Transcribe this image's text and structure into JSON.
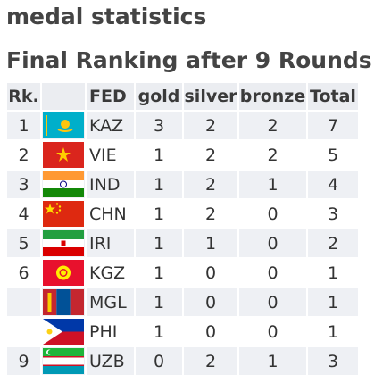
{
  "section_title": "medal statistics",
  "table_title": "Final Ranking after 9 Rounds",
  "columns": {
    "rank": "Rk.",
    "flag": "",
    "fed": "FED",
    "gold": "gold",
    "silver": "silver",
    "bronze": "bronze",
    "total": "Total"
  },
  "rows": [
    {
      "rank": "1",
      "flag_icon": "kazakhstan-flag-icon",
      "fed": "KAZ",
      "gold": "3",
      "silver": "2",
      "bronze": "2",
      "total": "7"
    },
    {
      "rank": "2",
      "flag_icon": "vietnam-flag-icon",
      "fed": "VIE",
      "gold": "1",
      "silver": "2",
      "bronze": "2",
      "total": "5"
    },
    {
      "rank": "3",
      "flag_icon": "india-flag-icon",
      "fed": "IND",
      "gold": "1",
      "silver": "2",
      "bronze": "1",
      "total": "4"
    },
    {
      "rank": "4",
      "flag_icon": "china-flag-icon",
      "fed": "CHN",
      "gold": "1",
      "silver": "2",
      "bronze": "0",
      "total": "3"
    },
    {
      "rank": "5",
      "flag_icon": "iran-flag-icon",
      "fed": "IRI",
      "gold": "1",
      "silver": "1",
      "bronze": "0",
      "total": "2"
    },
    {
      "rank": "6",
      "flag_icon": "kyrgyzstan-flag-icon",
      "fed": "KGZ",
      "gold": "1",
      "silver": "0",
      "bronze": "0",
      "total": "1"
    },
    {
      "rank": "",
      "flag_icon": "mongolia-flag-icon",
      "fed": "MGL",
      "gold": "1",
      "silver": "0",
      "bronze": "0",
      "total": "1"
    },
    {
      "rank": "",
      "flag_icon": "philippines-flag-icon",
      "fed": "PHI",
      "gold": "1",
      "silver": "0",
      "bronze": "0",
      "total": "1"
    },
    {
      "rank": "9",
      "flag_icon": "uzbekistan-flag-icon",
      "fed": "UZB",
      "gold": "0",
      "silver": "2",
      "bronze": "1",
      "total": "3"
    }
  ],
  "colors": {
    "header_bg": "#ebedf1",
    "row_alt_bg": "#eef0f4",
    "text": "#333333",
    "heading": "#444444"
  }
}
